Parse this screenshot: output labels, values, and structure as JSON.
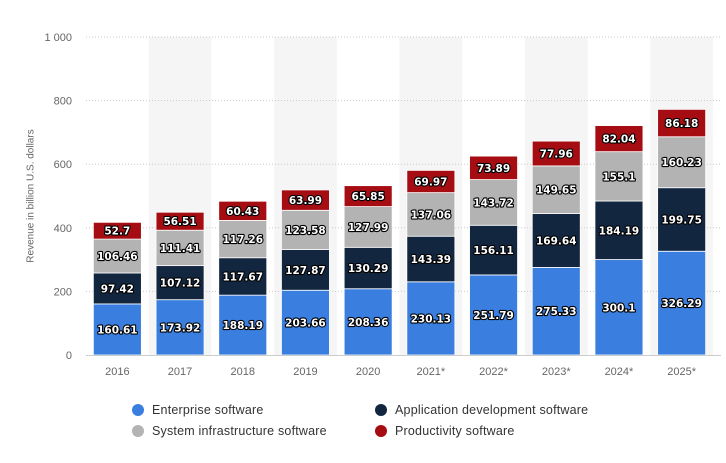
{
  "chart_data": {
    "type": "bar",
    "stacked": true,
    "categories": [
      "2016",
      "2017",
      "2018",
      "2019",
      "2020",
      "2021*",
      "2022*",
      "2023*",
      "2024*",
      "2025*"
    ],
    "series": [
      {
        "name": "Enterprise software",
        "color": "#3a7fe0",
        "values": [
          160.61,
          173.92,
          188.19,
          203.66,
          208.36,
          230.13,
          251.79,
          275.33,
          300.1,
          326.29
        ],
        "labels": [
          "160.61",
          "173.92",
          "188.19",
          "203.66",
          "208.36",
          "230.13",
          "251.79",
          "275.33",
          "300.1",
          "326.29"
        ]
      },
      {
        "name": "Application development software",
        "color": "#13263f",
        "values": [
          97.42,
          107.12,
          117.67,
          127.87,
          130.29,
          143.39,
          156.11,
          169.64,
          184.19,
          199.75
        ],
        "labels": [
          "97.42",
          "107.12",
          "117.67",
          "127.87",
          "130.29",
          "143.39",
          "156.11",
          "169.64",
          "184.19",
          "199.75"
        ]
      },
      {
        "name": "System infrastructure software",
        "color": "#b3b3b3",
        "values": [
          106.46,
          111.41,
          117.26,
          123.58,
          127.99,
          137.06,
          143.72,
          149.65,
          155.1,
          160.23
        ],
        "labels": [
          "106.46",
          "111.41",
          "117.26",
          "123.58",
          "127.99",
          "137.06",
          "143.72",
          "149.65",
          "155.1",
          "160.23"
        ]
      },
      {
        "name": "Productivity software",
        "color": "#a50d12",
        "values": [
          52.7,
          56.51,
          60.43,
          63.99,
          65.85,
          69.97,
          73.89,
          77.96,
          82.04,
          86.18
        ],
        "labels": [
          "52.7",
          "56.51",
          "60.43",
          "63.99",
          "65.85",
          "69.97",
          "73.89",
          "77.96",
          "82.04",
          "86.18"
        ]
      }
    ],
    "title": "",
    "xlabel": "",
    "ylabel": "Revenue in billion U.S. dollars",
    "ylim": [
      0,
      1000
    ],
    "yticks": [
      0,
      200,
      400,
      600,
      800,
      1000
    ],
    "ytick_labels": [
      "0",
      "200",
      "400",
      "600",
      "800",
      "1 000"
    ],
    "grid": true,
    "legend_position": "bottom"
  },
  "legend": {
    "items": [
      {
        "label": "Enterprise software",
        "color": "#3a7fe0"
      },
      {
        "label": "Application development software",
        "color": "#13263f"
      },
      {
        "label": "System infrastructure software",
        "color": "#b3b3b3"
      },
      {
        "label": "Productivity software",
        "color": "#a50d12"
      }
    ]
  }
}
